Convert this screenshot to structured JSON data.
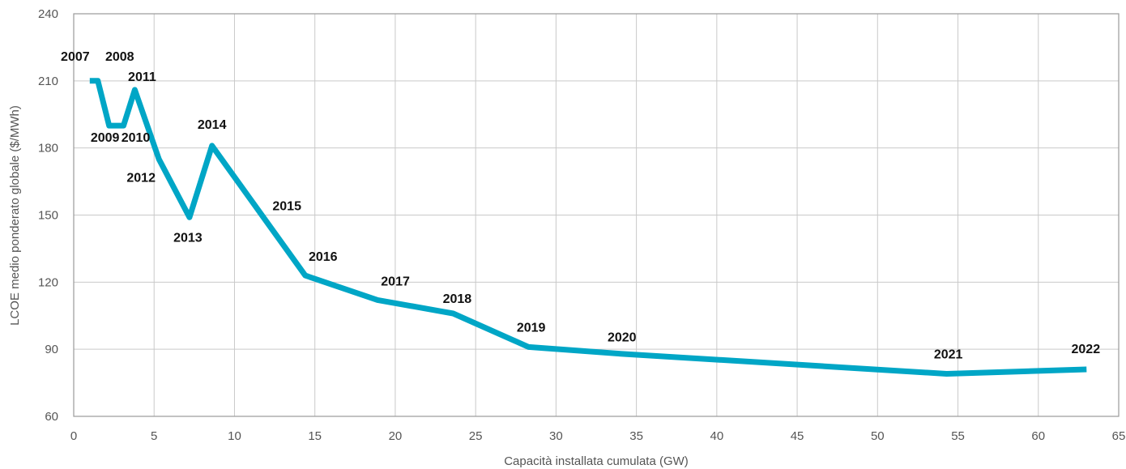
{
  "chart_data": {
    "type": "line",
    "title": "",
    "xlabel": "Capacità installata cumulata (GW)",
    "ylabel": "LCOE medio ponderato globale ($/MWh)",
    "xlim": [
      0,
      65
    ],
    "ylim": [
      60,
      240
    ],
    "xticks": [
      0,
      5,
      10,
      15,
      20,
      25,
      30,
      35,
      40,
      45,
      50,
      55,
      60,
      65
    ],
    "yticks": [
      60,
      90,
      120,
      150,
      180,
      210,
      240
    ],
    "grid": true,
    "line_color": "#00a6c6",
    "series": [
      {
        "points": [
          {
            "x": 1.0,
            "y": 210,
            "label": "2007"
          },
          {
            "x": 1.5,
            "y": 210,
            "label": "2008"
          },
          {
            "x": 2.2,
            "y": 190,
            "label": "2009"
          },
          {
            "x": 3.1,
            "y": 190,
            "label": "2010"
          },
          {
            "x": 3.8,
            "y": 206,
            "label": "2011"
          },
          {
            "x": 5.3,
            "y": 175,
            "label": "2012"
          },
          {
            "x": 7.2,
            "y": 149,
            "label": "2013"
          },
          {
            "x": 8.6,
            "y": 181,
            "label": "2014"
          },
          {
            "x": 11.8,
            "y": 149,
            "label": "2015"
          },
          {
            "x": 14.4,
            "y": 123,
            "label": "2016"
          },
          {
            "x": 18.9,
            "y": 112,
            "label": "2017"
          },
          {
            "x": 23.6,
            "y": 106,
            "label": "2018"
          },
          {
            "x": 28.3,
            "y": 91,
            "label": "2019"
          },
          {
            "x": 34.0,
            "y": 88,
            "label": "2020"
          },
          {
            "x": 54.3,
            "y": 79,
            "label": "2021"
          },
          {
            "x": 63.0,
            "y": 81,
            "label": "2022"
          }
        ]
      }
    ]
  }
}
